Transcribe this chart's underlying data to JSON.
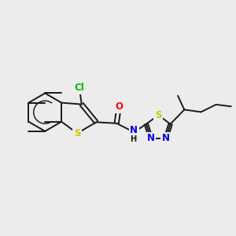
{
  "bg_color": "#ececec",
  "bond_color": "#1a1a1a",
  "atom_colors": {
    "Cl": "#00bb00",
    "S": "#cccc00",
    "O": "#ff0000",
    "N": "#0000ee",
    "C": "#1a1a1a",
    "H": "#1a1a1a"
  },
  "figsize": [
    3.0,
    3.0
  ],
  "dpi": 100,
  "lw": 1.4,
  "font": 8.5
}
